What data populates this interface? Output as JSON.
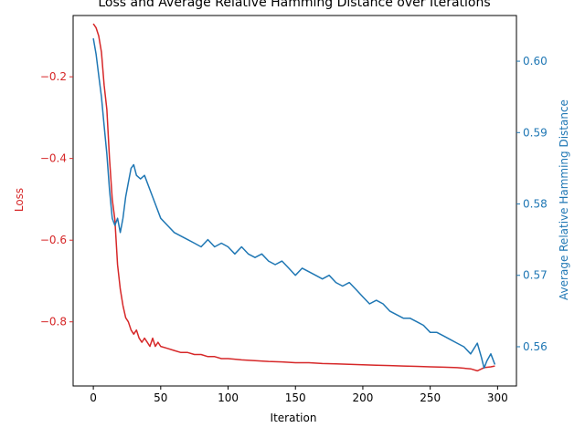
{
  "chart_data": {
    "type": "line",
    "title": "Loss and Average Relative Hamming Distance over Iterations",
    "xlabel": "Iteration",
    "ylabel_left": "Loss",
    "ylabel_right": "Average Relative Hamming Distance",
    "xlim": [
      -15,
      314
    ],
    "ylim_left": [
      -0.957,
      -0.05
    ],
    "ylim_right": [
      0.5545,
      0.6064
    ],
    "x_ticks": [
      0,
      50,
      100,
      150,
      200,
      250,
      300
    ],
    "y_ticks_left": [
      -0.8,
      -0.6,
      -0.4,
      -0.2
    ],
    "y_ticks_right": [
      0.56,
      0.57,
      0.58,
      0.59,
      0.6
    ],
    "colors": {
      "loss": "#d62728",
      "hamming": "#1f77b4",
      "axis": "#000000"
    },
    "series": [
      {
        "name": "Loss",
        "axis": "left",
        "x": [
          0,
          2,
          4,
          6,
          8,
          10,
          12,
          14,
          16,
          18,
          20,
          22,
          24,
          26,
          28,
          30,
          32,
          34,
          36,
          38,
          40,
          42,
          44,
          46,
          48,
          50,
          55,
          60,
          65,
          70,
          75,
          80,
          85,
          90,
          95,
          100,
          110,
          120,
          130,
          140,
          150,
          160,
          170,
          180,
          190,
          200,
          210,
          220,
          230,
          240,
          250,
          260,
          270,
          280,
          285,
          290,
          295,
          298
        ],
        "y": [
          -0.07,
          -0.08,
          -0.1,
          -0.14,
          -0.22,
          -0.28,
          -0.4,
          -0.5,
          -0.55,
          -0.66,
          -0.72,
          -0.76,
          -0.79,
          -0.8,
          -0.82,
          -0.83,
          -0.82,
          -0.84,
          -0.85,
          -0.84,
          -0.85,
          -0.86,
          -0.84,
          -0.86,
          -0.85,
          -0.86,
          -0.865,
          -0.87,
          -0.875,
          -0.875,
          -0.88,
          -0.88,
          -0.885,
          -0.885,
          -0.89,
          -0.89,
          -0.893,
          -0.895,
          -0.897,
          -0.898,
          -0.9,
          -0.9,
          -0.902,
          -0.903,
          -0.904,
          -0.905,
          -0.906,
          -0.907,
          -0.908,
          -0.909,
          -0.91,
          -0.911,
          -0.912,
          -0.915,
          -0.92,
          -0.912,
          -0.91,
          -0.908
        ]
      },
      {
        "name": "Average Relative Hamming Distance",
        "axis": "right",
        "x": [
          0,
          2,
          4,
          6,
          8,
          10,
          12,
          14,
          16,
          18,
          20,
          22,
          24,
          26,
          28,
          30,
          32,
          35,
          38,
          42,
          46,
          50,
          55,
          60,
          65,
          70,
          75,
          80,
          85,
          90,
          95,
          100,
          105,
          110,
          115,
          120,
          125,
          130,
          135,
          140,
          145,
          150,
          155,
          160,
          165,
          170,
          175,
          180,
          185,
          190,
          195,
          200,
          205,
          210,
          215,
          220,
          225,
          230,
          235,
          240,
          245,
          250,
          255,
          260,
          265,
          270,
          275,
          280,
          285,
          288,
          290,
          292,
          295,
          298
        ],
        "y": [
          0.6032,
          0.601,
          0.598,
          0.595,
          0.591,
          0.587,
          0.582,
          0.578,
          0.577,
          0.578,
          0.576,
          0.578,
          0.581,
          0.583,
          0.585,
          0.5855,
          0.584,
          0.5835,
          0.584,
          0.582,
          0.58,
          0.578,
          0.577,
          0.576,
          0.5755,
          0.575,
          0.5745,
          0.574,
          0.575,
          0.574,
          0.5745,
          0.574,
          0.573,
          0.574,
          0.573,
          0.5725,
          0.573,
          0.572,
          0.5715,
          0.572,
          0.571,
          0.57,
          0.571,
          0.5705,
          0.57,
          0.5695,
          0.57,
          0.569,
          0.5685,
          0.569,
          0.568,
          0.567,
          0.566,
          0.5665,
          0.566,
          0.565,
          0.5645,
          0.564,
          0.564,
          0.5635,
          0.563,
          0.562,
          0.562,
          0.5615,
          0.561,
          0.5605,
          0.56,
          0.559,
          0.5605,
          0.5585,
          0.557,
          0.558,
          0.559,
          0.5575
        ]
      }
    ]
  }
}
